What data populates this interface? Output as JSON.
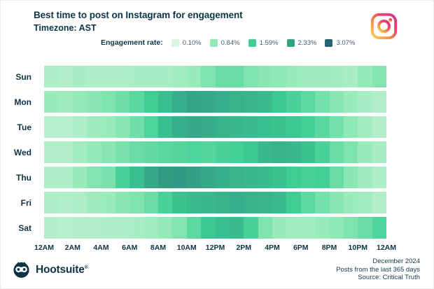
{
  "header": {
    "title": "Best time to post on Instagram for engagement",
    "subtitle": "Timezone: AST",
    "legend_label": "Engagement rate:",
    "legend_stops": [
      {
        "label": "0.10%",
        "color": "#d9f6e0"
      },
      {
        "label": "0.84%",
        "color": "#90e9b5"
      },
      {
        "label": "1.59%",
        "color": "#3fce94"
      },
      {
        "label": "2.33%",
        "color": "#33a186"
      },
      {
        "label": "3.07%",
        "color": "#2a6173"
      }
    ]
  },
  "chart_data": {
    "type": "heatmap",
    "title": "Best time to post on Instagram for engagement",
    "subtitle": "Timezone: AST",
    "unit": "engagement rate %",
    "legend_title": "Engagement rate:",
    "x_hours": [
      "12AM",
      "1AM",
      "2AM",
      "3AM",
      "4AM",
      "5AM",
      "6AM",
      "7AM",
      "8AM",
      "9AM",
      "10AM",
      "11AM",
      "12PM",
      "1PM",
      "2PM",
      "3PM",
      "4PM",
      "5PM",
      "6PM",
      "7PM",
      "8PM",
      "9PM",
      "10PM",
      "11PM"
    ],
    "x_tick_labels": [
      "12AM",
      "2AM",
      "4AM",
      "6AM",
      "8AM",
      "10AM",
      "12PM",
      "2PM",
      "4PM",
      "6PM",
      "8PM",
      "10PM",
      "12AM"
    ],
    "color_scale": {
      "values": [
        0.1,
        0.84,
        1.59,
        2.33,
        3.07
      ],
      "colors": [
        "#d9f6e0",
        "#90e9b5",
        "#3fce94",
        "#33a186",
        "#2a6173"
      ]
    },
    "series": [
      {
        "name": "Sun",
        "values": [
          0.55,
          0.5,
          0.6,
          0.55,
          0.55,
          0.55,
          0.6,
          0.6,
          0.6,
          0.65,
          0.75,
          1.0,
          1.2,
          1.2,
          1.0,
          0.9,
          0.85,
          0.75,
          0.7,
          0.7,
          0.65,
          0.6,
          0.8,
          0.95
        ]
      },
      {
        "name": "Mon",
        "values": [
          0.75,
          0.7,
          0.8,
          0.9,
          1.0,
          1.15,
          1.35,
          1.6,
          1.85,
          2.1,
          2.25,
          2.2,
          2.1,
          2.05,
          2.0,
          1.9,
          1.7,
          1.5,
          1.3,
          1.1,
          0.9,
          0.75,
          0.6,
          0.5
        ]
      },
      {
        "name": "Tue",
        "values": [
          0.45,
          0.45,
          0.55,
          0.7,
          0.75,
          0.9,
          1.15,
          1.45,
          1.85,
          2.1,
          2.2,
          2.15,
          2.05,
          1.95,
          1.9,
          1.85,
          1.8,
          1.7,
          1.55,
          1.35,
          1.1,
          0.85,
          0.65,
          0.5
        ]
      },
      {
        "name": "Wed",
        "values": [
          0.5,
          0.5,
          0.65,
          0.8,
          0.9,
          1.05,
          1.2,
          1.25,
          1.35,
          1.4,
          1.45,
          1.4,
          1.5,
          1.55,
          1.7,
          1.95,
          2.05,
          1.95,
          1.8,
          1.5,
          1.2,
          1.0,
          0.75,
          0.6
        ]
      },
      {
        "name": "Thu",
        "values": [
          0.55,
          0.55,
          0.75,
          0.95,
          1.05,
          1.5,
          1.85,
          2.2,
          2.4,
          2.45,
          2.35,
          2.2,
          2.1,
          2.0,
          1.95,
          1.9,
          1.8,
          1.6,
          1.5,
          1.55,
          1.2,
          0.9,
          0.7,
          0.55
        ]
      },
      {
        "name": "Fri",
        "values": [
          0.55,
          0.5,
          0.55,
          0.7,
          0.75,
          0.9,
          1.0,
          1.2,
          1.5,
          1.8,
          1.9,
          1.95,
          2.05,
          2.1,
          2.05,
          2.0,
          1.9,
          1.6,
          1.3,
          1.1,
          0.9,
          0.75,
          0.65,
          0.5
        ]
      },
      {
        "name": "Sat",
        "values": [
          0.5,
          0.45,
          0.5,
          0.5,
          0.55,
          0.55,
          0.6,
          0.65,
          0.8,
          0.95,
          1.3,
          1.7,
          1.85,
          1.9,
          1.5,
          1.0,
          0.75,
          0.65,
          0.65,
          0.75,
          0.85,
          1.0,
          1.2,
          1.45
        ]
      }
    ]
  },
  "brand": {
    "navy": "#0e3347",
    "instagram_gradient": [
      "#fbd34d",
      "#f59140",
      "#ec4860",
      "#d9319c"
    ]
  },
  "footer": {
    "brand_name": "Hootsuite",
    "registered_mark": "®",
    "meta_lines": [
      "December 2024",
      "Posts from the last 365 days",
      "Source: Critical Truth"
    ]
  }
}
